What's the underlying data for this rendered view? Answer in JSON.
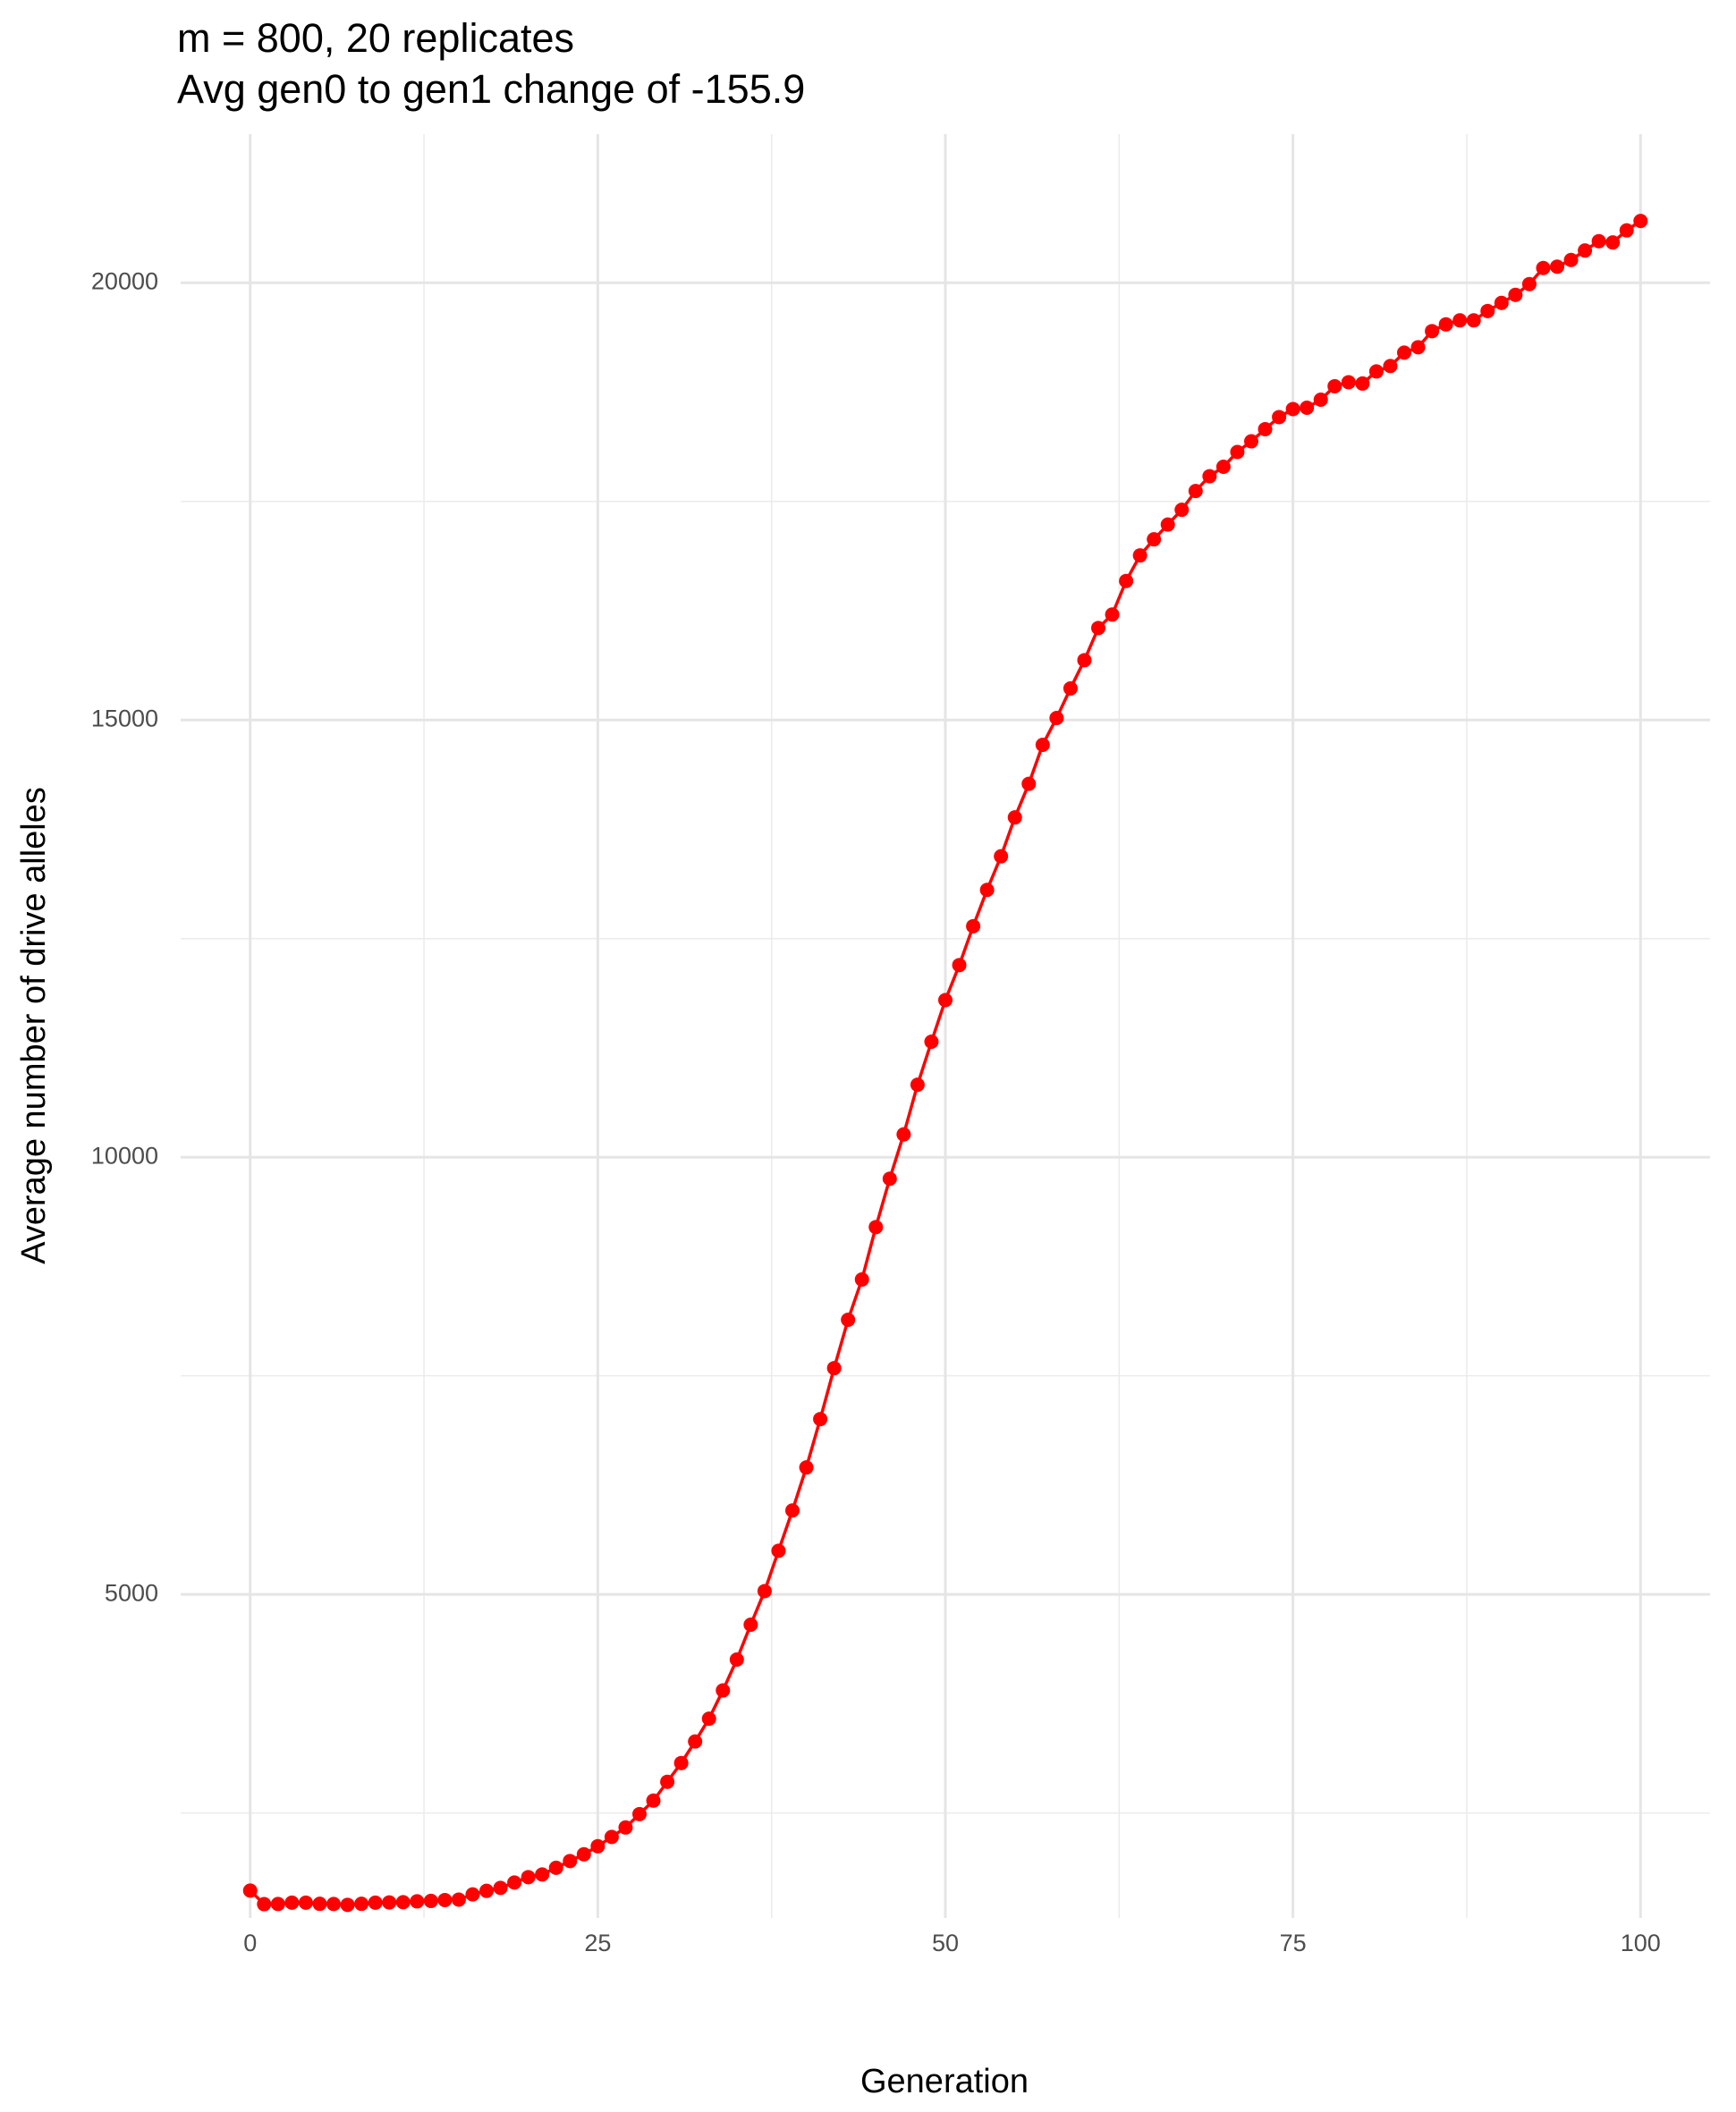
{
  "chart_data": {
    "type": "line",
    "title": "m = 800, 20 replicates",
    "subtitle": "Avg gen0 to gen1 change of -155.9",
    "x_label": "Generation",
    "y_label": "Average number of drive alleles",
    "x": [
      0,
      1,
      2,
      3,
      4,
      5,
      6,
      7,
      8,
      9,
      10,
      11,
      12,
      13,
      14,
      15,
      16,
      17,
      18,
      19,
      20,
      21,
      22,
      23,
      24,
      25,
      26,
      27,
      28,
      29,
      30,
      31,
      32,
      33,
      34,
      35,
      36,
      37,
      38,
      39,
      40,
      41,
      42,
      43,
      44,
      45,
      46,
      47,
      48,
      49,
      50,
      51,
      52,
      53,
      54,
      55,
      56,
      57,
      58,
      59,
      60,
      61,
      62,
      63,
      64,
      65,
      66,
      67,
      68,
      69,
      70,
      71,
      72,
      73,
      74,
      75,
      76,
      77,
      78,
      79,
      80,
      81,
      82,
      83,
      84,
      85,
      86,
      87,
      88,
      89,
      90,
      91,
      92,
      93,
      94,
      95,
      96,
      97,
      98,
      99,
      100
    ],
    "series": [
      {
        "name": "drive alleles",
        "color": "#ff0000",
        "values": [
          1613,
          1458,
          1460,
          1475,
          1475,
          1462,
          1460,
          1450,
          1462,
          1475,
          1478,
          1480,
          1490,
          1495,
          1505,
          1510,
          1570,
          1610,
          1644,
          1705,
          1767,
          1797,
          1874,
          1951,
          2028,
          2120,
          2227,
          2335,
          2488,
          2642,
          2857,
          3072,
          3318,
          3579,
          3902,
          4255,
          4654,
          5038,
          5499,
          5960,
          6452,
          7005,
          7588,
          8141,
          8602,
          9201,
          9754,
          10261,
          10829,
          11321,
          11797,
          12197,
          12642,
          13057,
          13441,
          13886,
          14270,
          14716,
          15023,
          15361,
          15684,
          16052,
          16206,
          16590,
          16882,
          17066,
          17235,
          17404,
          17619,
          17788,
          17896,
          18065,
          18187,
          18326,
          18464,
          18556,
          18571,
          18663,
          18817,
          18863,
          18848,
          18986,
          19048,
          19201,
          19263,
          19447,
          19524,
          19570,
          19570,
          19677,
          19770,
          19862,
          19985,
          20169,
          20184,
          20261,
          20369,
          20476,
          20461,
          20599,
          20707
        ]
      }
    ],
    "xlim": [
      -5,
      105
    ],
    "ylim": [
      1300,
      21700
    ],
    "xticks": [
      0,
      25,
      50,
      75,
      100
    ],
    "yticks": [
      5000,
      10000,
      15000,
      20000
    ],
    "grid": true
  }
}
